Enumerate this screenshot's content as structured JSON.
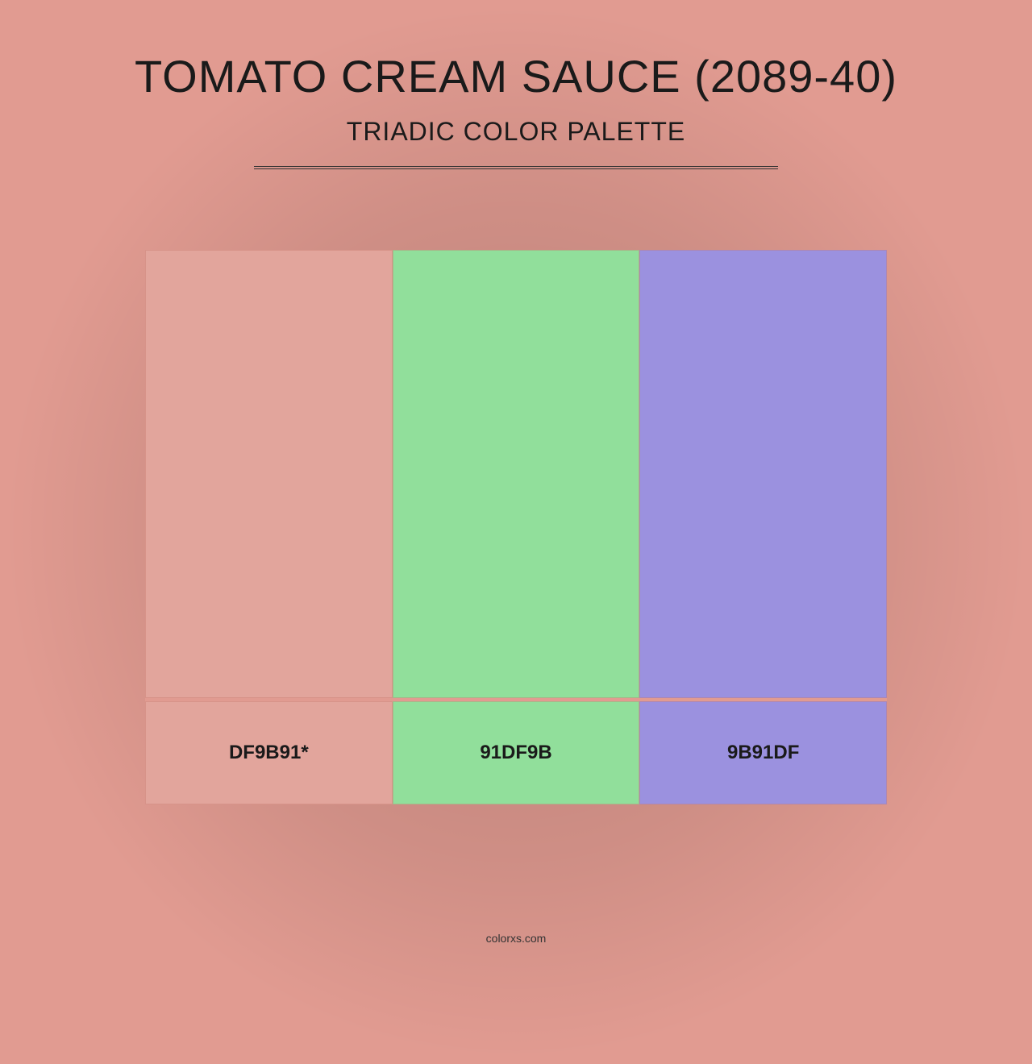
{
  "background_color": "#e19b91",
  "title": "TOMATO CREAM SAUCE (2089-40)",
  "subtitle": "TRIADIC COLOR PALETTE",
  "title_fontsize": 56,
  "subtitle_fontsize": 32,
  "title_color": "#1a1a1a",
  "divider_color": "#333333",
  "divider_width": 650,
  "palette": {
    "type": "color-swatches",
    "swatches": [
      {
        "hex": "#e2a59c",
        "label": "DF9B91*"
      },
      {
        "hex": "#91df9b",
        "label": "91DF9B"
      },
      {
        "hex": "#9b91df",
        "label": "9B91DF"
      }
    ],
    "swatch_height": 556,
    "label_height": 128,
    "label_fontsize": 24,
    "label_fontweight": "bold",
    "label_color": "#1a1a1a",
    "border_color": "rgba(200,120,110,0.4)",
    "container_width": 920
  },
  "footer": "colorxs.com",
  "footer_fontsize": 14,
  "footer_color": "#333333"
}
